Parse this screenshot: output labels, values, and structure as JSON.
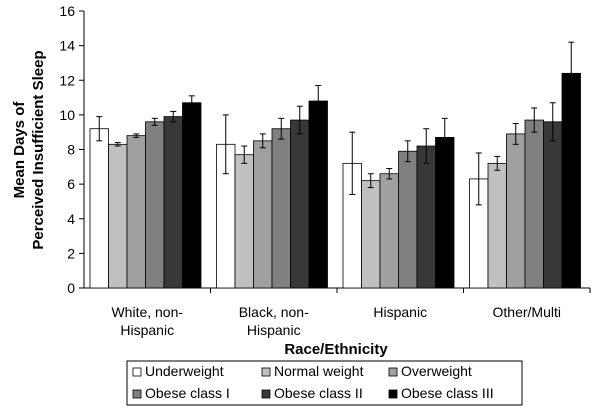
{
  "chart_data": {
    "type": "bar",
    "xlabel": "Race/Ethnicity",
    "ylabel_lines": [
      "Mean Days of",
      "Perceived Insufficient Sleep"
    ],
    "ylim": [
      0,
      16
    ],
    "yticks": [
      0,
      2,
      4,
      6,
      8,
      10,
      12,
      14,
      16
    ],
    "grid": "none",
    "legend_position": "bottom",
    "categories": [
      [
        "White, non-",
        "Hispanic"
      ],
      [
        "Black, non-",
        "Hispanic"
      ],
      [
        "Hispanic"
      ],
      [
        "Other/Multi"
      ]
    ],
    "series": [
      {
        "name": "Underweight",
        "color": "#ffffff",
        "values": [
          9.2,
          8.3,
          7.2,
          6.3
        ],
        "err": [
          0.7,
          1.7,
          1.8,
          1.5
        ]
      },
      {
        "name": "Normal weight",
        "color": "#c0c0c0",
        "values": [
          8.3,
          7.7,
          6.2,
          7.2
        ],
        "err": [
          0.1,
          0.5,
          0.4,
          0.4
        ]
      },
      {
        "name": "Overweight",
        "color": "#a0a0a0",
        "values": [
          8.8,
          8.5,
          6.6,
          8.9
        ],
        "err": [
          0.1,
          0.4,
          0.3,
          0.6
        ]
      },
      {
        "name": "Obese class I",
        "color": "#808080",
        "values": [
          9.6,
          9.2,
          7.9,
          9.7
        ],
        "err": [
          0.2,
          0.6,
          0.6,
          0.7
        ]
      },
      {
        "name": "Obese class II",
        "color": "#383838",
        "values": [
          9.9,
          9.7,
          8.2,
          9.6
        ],
        "err": [
          0.3,
          0.8,
          1.0,
          1.1
        ]
      },
      {
        "name": "Obese class III",
        "color": "#000000",
        "values": [
          10.7,
          10.8,
          8.7,
          12.4
        ],
        "err": [
          0.4,
          0.9,
          1.1,
          1.8
        ]
      }
    ]
  }
}
